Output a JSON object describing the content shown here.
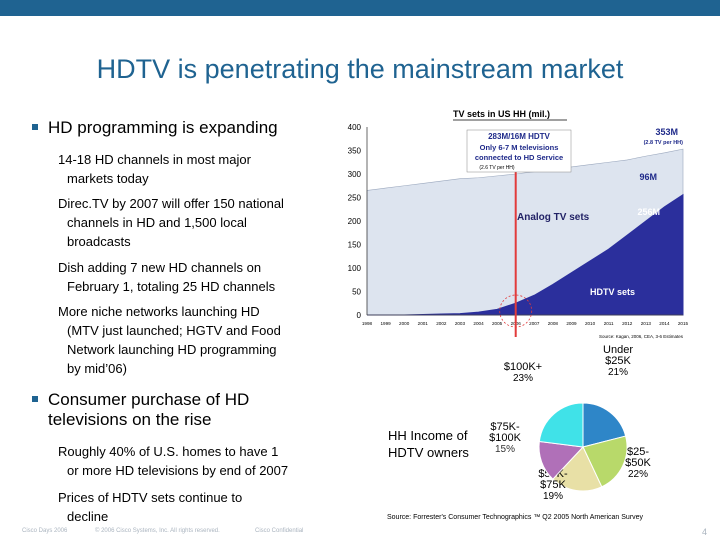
{
  "slide": {
    "title": "HDTV is penetrating the mainstream market",
    "bullets": [
      {
        "text": "HD programming is expanding",
        "subs": [
          [
            "14-18 HD channels in most major",
            "markets today"
          ],
          [
            "Direc.TV by 2007 will offer 150 national",
            "channels in HD and 1,500 local",
            "broadcasts"
          ],
          [
            "Dish adding 7 new HD channels on",
            "February 1, totaling 25 HD channels"
          ],
          [
            "More niche networks launching HD",
            "(MTV just launched; HGTV and Food",
            "Network launching HD programming",
            "by mid’06)"
          ]
        ]
      },
      {
        "text": [
          "Consumer purchase of HD",
          "televisions on the rise"
        ],
        "subs": [
          [
            "Roughly 40%  of U.S. homes to have 1",
            "or more HD televisions by end of 2007"
          ],
          [
            "Prices of HDTV sets continue to",
            "decline"
          ]
        ]
      }
    ],
    "footer": {
      "left": "Cisco Days 2006",
      "copyright": "© 2006 Cisco Systems, Inc. All rights reserved.",
      "confidential": "Cisco Confidential",
      "page": "4"
    }
  },
  "chart_data": [
    {
      "type": "area",
      "title": "TV sets in US HH (mil.)",
      "x": [
        "1998",
        "1999",
        "2000",
        "2001",
        "2002",
        "2003",
        "2004",
        "2005",
        "2006",
        "2007",
        "2008",
        "2009",
        "2010",
        "2011",
        "2012",
        "2013",
        "2014",
        "2015"
      ],
      "x_tick_labels": [
        "1998",
        "1999",
        "2000",
        "2001",
        "2002",
        "2003",
        "2004",
        "2005",
        "2006",
        "2007",
        "2008",
        "2009",
        "2010",
        "2011",
        "2012",
        "2013",
        "2014",
        "2015"
      ],
      "ylim": [
        0,
        400
      ],
      "y_ticks": [
        0,
        50,
        100,
        150,
        200,
        250,
        300,
        350,
        400
      ],
      "series": [
        {
          "name": "HDTV sets",
          "values": [
            0,
            0,
            0,
            1,
            2,
            3,
            6,
            12,
            25,
            42,
            65,
            90,
            115,
            140,
            170,
            200,
            230,
            256
          ]
        },
        {
          "name": "Analog TV sets",
          "values": [
            265,
            270,
            275,
            280,
            285,
            290,
            292,
            296,
            300,
            305,
            310,
            315,
            320,
            325,
            330,
            338,
            345,
            353
          ]
        }
      ],
      "annotations": {
        "total": "353M",
        "total_note": "(2.8 TV per HH)",
        "analog_end": "96M",
        "hd_end": "256M",
        "callout_line1": "283M/16M HDTV",
        "callout_line2": "Only 6-7 M televisions",
        "callout_line3": "connected to HD Service",
        "callout_note": "(2.6 TV per HH)",
        "analog_label": "Analog TV sets",
        "hd_label": "HDTV sets",
        "source": "Source: Kagan, 2006, CEA, 3-6 Estimates"
      },
      "colors": {
        "hd": "#2b2f9c",
        "analog": "#dde4ef",
        "marker": "#e23b3b"
      }
    },
    {
      "type": "pie",
      "title": "HH Income of HDTV owners",
      "slices": [
        {
          "label": "Under $25K",
          "label_lines": [
            "Under",
            "$25K"
          ],
          "pct_label": "21%",
          "value": 21,
          "color": "#2e86c8"
        },
        {
          "label": "$25-$50K",
          "label_lines": [
            "$25-",
            "$50K"
          ],
          "pct_label": "22%",
          "value": 22,
          "color": "#b8d96a"
        },
        {
          "label": "$50K-$75K",
          "label_lines": [
            "$50K-",
            "$75K"
          ],
          "pct_label": "19%",
          "value": 19,
          "color": "#e8e0a6"
        },
        {
          "label": "$75K-$100K",
          "label_lines": [
            "$75K-",
            "$100K"
          ],
          "pct_label": "15%",
          "value": 15,
          "color": "#b070b8"
        },
        {
          "label": "$100K+",
          "label_lines": [
            "$100K+"
          ],
          "pct_label": "23%",
          "value": 23,
          "color": "#40e2e8"
        }
      ],
      "caption_lines": [
        "HH Income of",
        "HDTV owners"
      ],
      "source": "Source: Forrester's Consumer Technographics ™ Q2 2005 North American Survey"
    }
  ]
}
